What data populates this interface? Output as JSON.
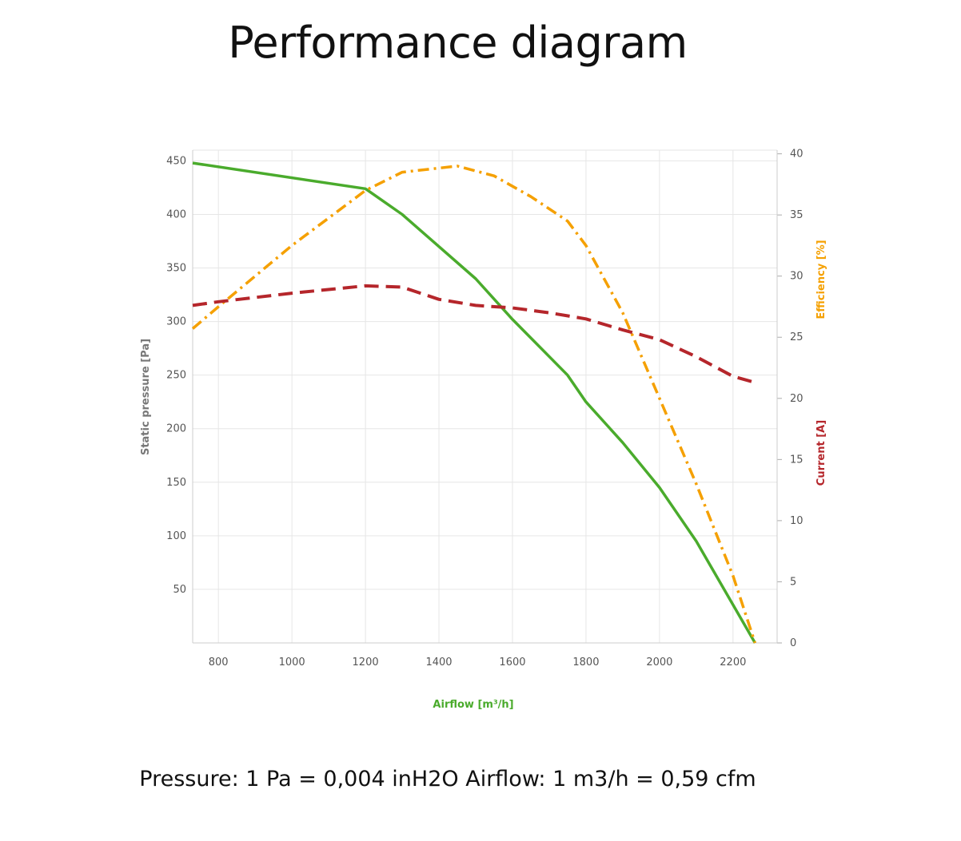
{
  "page": {
    "title": "Performance diagram",
    "footnote": "Pressure: 1 Pa = 0,004 inH2O Airflow: 1 m3/h = 0,59 cfm"
  },
  "chart_data": {
    "type": "line",
    "xlabel": "Airflow [m³/h]",
    "ylabel_left": "Static pressure [Pa]",
    "ylabel_right_top": "Efficiency [%]",
    "ylabel_right_bottom": "Current [A]",
    "xlim": [
      730,
      2320
    ],
    "ylim_left": [
      0,
      460
    ],
    "ylim_right": [
      0,
      40.3
    ],
    "x_ticks": [
      800,
      1000,
      1200,
      1400,
      1600,
      1800,
      2000,
      2200
    ],
    "y_left_ticks": [
      50,
      100,
      150,
      200,
      250,
      300,
      350,
      400,
      450
    ],
    "y_right_ticks": [
      0,
      5,
      10,
      15,
      20,
      25,
      30,
      35,
      40
    ],
    "grid": true,
    "colors": {
      "pressure": "#4aab2c",
      "efficiency": "#f5a000",
      "current": "#b5262b",
      "xlabel": "#4aab2c",
      "ylabel_left": "#777777",
      "ylabel_right_top": "#f5a000",
      "ylabel_right_bottom": "#b5262b",
      "grid": "#e6e6e6"
    },
    "series": [
      {
        "axis": "left",
        "style": "solid",
        "x": [
          730,
          1200,
          1300,
          1400,
          1500,
          1600,
          1750,
          1800,
          1900,
          2000,
          2100,
          2260
        ],
        "y": [
          448,
          424,
          400,
          370,
          340,
          302,
          250,
          225,
          187,
          145,
          95,
          0
        ]
      },
      {
        "axis": "right",
        "style": "dash-dot",
        "x": [
          730,
          800,
          1000,
          1200,
          1300,
          1450,
          1550,
          1650,
          1750,
          1800,
          1900,
          2000,
          2100,
          2200,
          2260
        ],
        "y": [
          25.7,
          27.5,
          32.5,
          37.0,
          38.5,
          39.0,
          38.2,
          36.5,
          34.5,
          32.5,
          27.0,
          20.0,
          13.0,
          5.5,
          0
        ]
      },
      {
        "axis": "right",
        "style": "dashed",
        "x": [
          730,
          800,
          1000,
          1200,
          1300,
          1400,
          1500,
          1600,
          1700,
          1800,
          1900,
          2000,
          2100,
          2200,
          2260
        ],
        "y": [
          27.6,
          27.9,
          28.6,
          29.2,
          29.1,
          28.1,
          27.6,
          27.4,
          27.0,
          26.5,
          25.6,
          24.8,
          23.4,
          21.8,
          21.3
        ]
      }
    ]
  }
}
